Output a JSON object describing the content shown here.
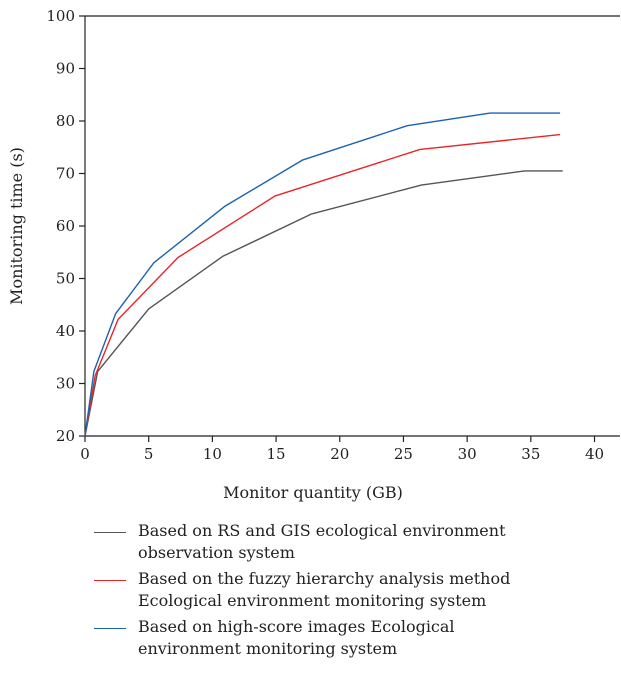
{
  "chart_data": {
    "type": "line",
    "xlabel": "Monitor quantity (GB)",
    "ylabel": "Monitoring time (s)",
    "xlim": [
      0,
      42
    ],
    "ylim": [
      20,
      100
    ],
    "xticks": [
      0,
      5,
      10,
      15,
      20,
      25,
      30,
      35,
      40
    ],
    "yticks": [
      20,
      30,
      40,
      50,
      60,
      70,
      80,
      90,
      100
    ],
    "grid": false,
    "legend_position": "bottom",
    "series": [
      {
        "name": "Based on RS and GIS ecological environment observation system",
        "color": "#555555",
        "x": [
          0,
          1.0,
          5.0,
          10.8,
          17.8,
          26.4,
          34.5,
          37.5
        ],
        "y": [
          20,
          32.3,
          44.2,
          54.2,
          62.3,
          67.8,
          70.5,
          70.5
        ]
      },
      {
        "name": "Based on the fuzzy hierarchy analysis method Ecological environment monitoring system",
        "color": "#e8262a",
        "x": [
          0,
          0.8,
          2.6,
          7.3,
          14.9,
          26.3,
          37.3
        ],
        "y": [
          20,
          31.5,
          42.2,
          54.0,
          65.7,
          74.6,
          77.4
        ]
      },
      {
        "name": "Based on high-score images Ecological environment monitoring system",
        "color": "#1a63b0",
        "x": [
          0,
          0.7,
          2.4,
          5.4,
          11.0,
          17.1,
          25.3,
          31.8,
          37.3
        ],
        "y": [
          20,
          32.3,
          43.3,
          53.0,
          63.8,
          72.6,
          79.1,
          81.5,
          81.5
        ]
      }
    ]
  }
}
